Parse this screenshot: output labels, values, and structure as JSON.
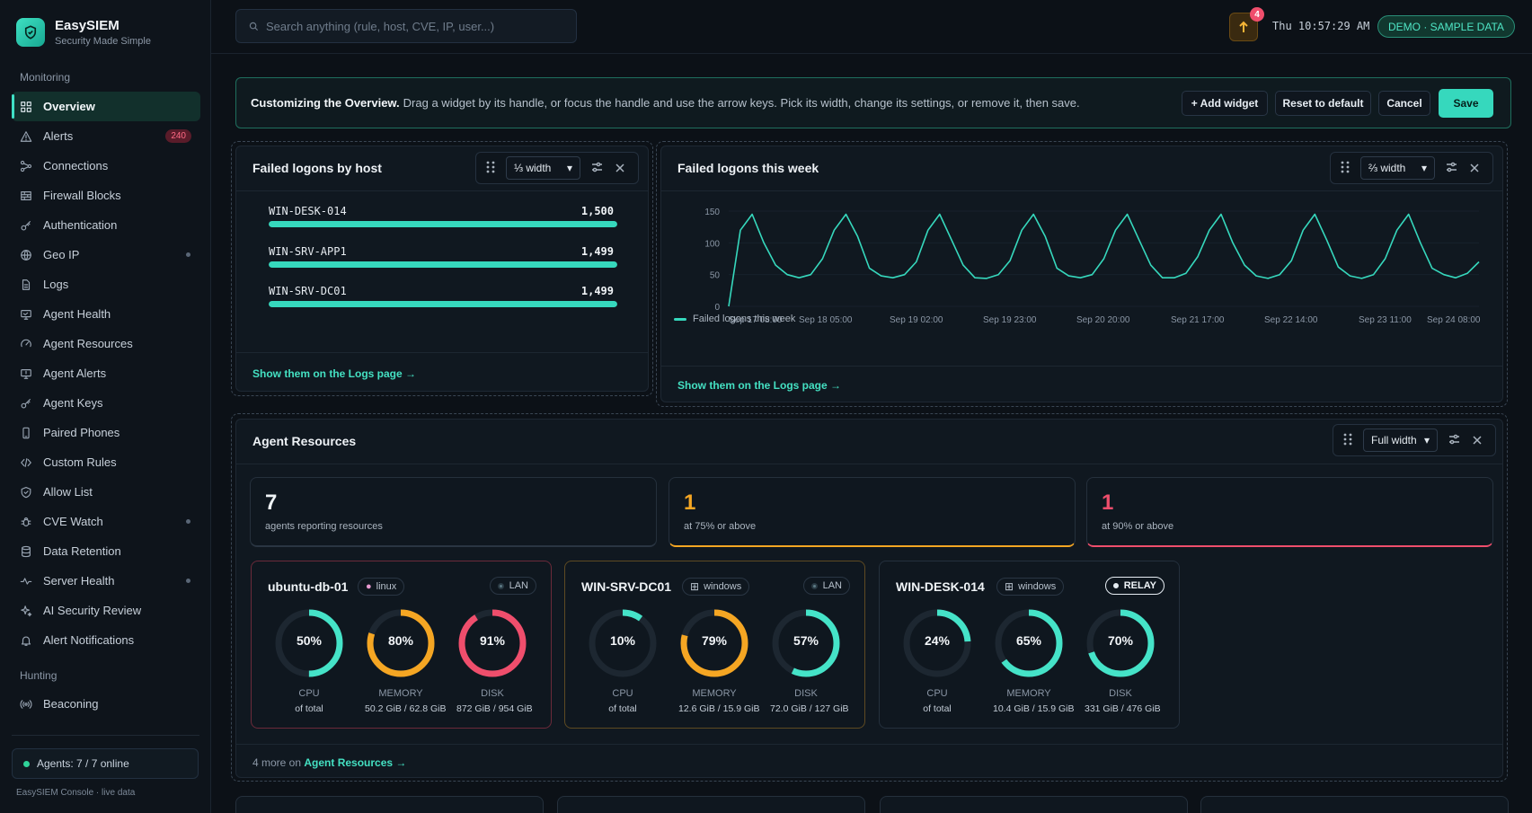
{
  "brand": {
    "name": "EasySIEM",
    "tagline": "Security Made Simple"
  },
  "sidebar": {
    "section_monitoring": "Monitoring",
    "section_hunting": "Hunting",
    "items": [
      {
        "label": "Overview",
        "icon": "grid-icon"
      },
      {
        "label": "Alerts",
        "icon": "alert-triangle-icon",
        "badge": "240"
      },
      {
        "label": "Connections",
        "icon": "connections-icon"
      },
      {
        "label": "Firewall Blocks",
        "icon": "firewall-icon"
      },
      {
        "label": "Authentication",
        "icon": "key-icon"
      },
      {
        "label": "Geo IP",
        "icon": "globe-icon"
      },
      {
        "label": "Logs",
        "icon": "file-icon"
      },
      {
        "label": "Agent Health",
        "icon": "monitor-icon"
      },
      {
        "label": "Agent Resources",
        "icon": "gauge-icon"
      },
      {
        "label": "Agent Alerts",
        "icon": "monitor-alert-icon"
      },
      {
        "label": "Agent Keys",
        "icon": "key-icon"
      },
      {
        "label": "Paired Phones",
        "icon": "phone-icon"
      },
      {
        "label": "Custom Rules",
        "icon": "code-icon"
      },
      {
        "label": "Allow List",
        "icon": "shield-check-icon"
      },
      {
        "label": "CVE Watch",
        "icon": "bug-icon"
      },
      {
        "label": "Data Retention",
        "icon": "database-icon"
      },
      {
        "label": "Server Health",
        "icon": "pulse-icon"
      },
      {
        "label": "AI Security Review",
        "icon": "sparkle-icon"
      },
      {
        "label": "Alert Notifications",
        "icon": "bell-icon"
      }
    ],
    "hunting_items": [
      {
        "label": "Beaconing",
        "icon": "broadcast-icon"
      }
    ],
    "agents_status": "Agents: 7 / 7 online",
    "footer": "EasySIEM Console · live data"
  },
  "topbar": {
    "search_placeholder": "Search anything (rule, host, CVE, IP, user...)",
    "notification_count": "4",
    "clock": "Thu 10:57:29 AM",
    "demo_badge": "DEMO · SAMPLE DATA"
  },
  "banner": {
    "bold": "Customizing the Overview.",
    "text": "Drag a widget by its handle, or focus the handle and use the arrow keys. Pick its width, change its settings, or remove it, then save.",
    "add_widget": "+ Add widget",
    "reset": "Reset to default",
    "cancel": "Cancel",
    "save": "Save"
  },
  "widget_hosts": {
    "title": "Failed logons by host",
    "width": "⅓ width",
    "rows": [
      {
        "host": "WIN-DESK-014",
        "value": "1,500",
        "fraction": 1.0
      },
      {
        "host": "WIN-SRV-APP1",
        "value": "1,499",
        "fraction": 0.999
      },
      {
        "host": "WIN-SRV-DC01",
        "value": "1,499",
        "fraction": 0.999
      }
    ],
    "link": "Show them on the Logs page →"
  },
  "widget_week": {
    "title": "Failed logons this week",
    "width": "⅔ width",
    "legend": "Failed logons this week",
    "link": "Show them on the Logs page →"
  },
  "chart_data": {
    "type": "line",
    "title": "Failed logons this week",
    "series": [
      {
        "name": "Failed logons this week",
        "values": [
          0,
          120,
          145,
          100,
          65,
          50,
          45,
          50,
          75,
          120,
          145,
          110,
          60,
          48,
          45,
          50,
          70,
          120,
          145,
          105,
          65,
          45,
          44,
          50,
          72,
          120,
          145,
          110,
          60,
          48,
          45,
          50,
          75,
          120,
          145,
          105,
          65,
          45,
          45,
          52,
          78,
          120,
          145,
          100,
          65,
          48,
          44,
          50,
          72,
          120,
          145,
          105,
          62,
          48,
          44,
          50,
          75,
          120,
          145,
          100,
          60,
          50,
          45,
          52,
          70
        ]
      }
    ],
    "x_tick_labels": [
      "Sep 17 08:00",
      "Sep 18 05:00",
      "Sep 19 02:00",
      "Sep 19 23:00",
      "Sep 20 20:00",
      "Sep 21 17:00",
      "Sep 22 14:00",
      "Sep 23 11:00",
      "Sep 24 08:00"
    ],
    "y_ticks": [
      0,
      50,
      100,
      150
    ],
    "ylim": [
      0,
      150
    ],
    "color": "#36d8bd"
  },
  "widget_resources": {
    "title": "Agent Resources",
    "width": "Full width",
    "stats": [
      {
        "value": "7",
        "label": "agents reporting resources",
        "color": "#f0f4f7"
      },
      {
        "value": "1",
        "label": "at 75% or above",
        "color": "#f5a623"
      },
      {
        "value": "1",
        "label": "at 90% or above",
        "color": "#ef4e6c"
      }
    ],
    "agents": [
      {
        "name": "ubuntu-db-01",
        "os": "linux",
        "net": "LAN",
        "border": "#6b2a3a",
        "gauges": [
          {
            "pct": 50,
            "label": "50%",
            "name": "CPU",
            "sub": "of total",
            "color": "#45e3c8"
          },
          {
            "pct": 80,
            "label": "80%",
            "name": "MEMORY",
            "sub": "50.2 GiB / 62.8 GiB",
            "color": "#f5a623"
          },
          {
            "pct": 91,
            "label": "91%",
            "name": "DISK",
            "sub": "872 GiB / 954 GiB",
            "color": "#ef4e6c"
          }
        ]
      },
      {
        "name": "WIN-SRV-DC01",
        "os": "windows",
        "net": "LAN",
        "border": "#5e4a22",
        "gauges": [
          {
            "pct": 10,
            "label": "10%",
            "name": "CPU",
            "sub": "of total",
            "color": "#45e3c8"
          },
          {
            "pct": 79,
            "label": "79%",
            "name": "MEMORY",
            "sub": "12.6 GiB / 15.9 GiB",
            "color": "#f5a623"
          },
          {
            "pct": 57,
            "label": "57%",
            "name": "DISK",
            "sub": "72.0 GiB / 127 GiB",
            "color": "#45e3c8"
          }
        ]
      },
      {
        "name": "WIN-DESK-014",
        "os": "windows",
        "net": "RELAY",
        "border": "#24303d",
        "gauges": [
          {
            "pct": 24,
            "label": "24%",
            "name": "CPU",
            "sub": "of total",
            "color": "#45e3c8"
          },
          {
            "pct": 65,
            "label": "65%",
            "name": "MEMORY",
            "sub": "10.4 GiB / 15.9 GiB",
            "color": "#45e3c8"
          },
          {
            "pct": 70,
            "label": "70%",
            "name": "DISK",
            "sub": "331 GiB / 476 GiB",
            "color": "#45e3c8"
          }
        ]
      }
    ],
    "more_prefix": "4 more on",
    "more_link": "Agent Resources →"
  }
}
